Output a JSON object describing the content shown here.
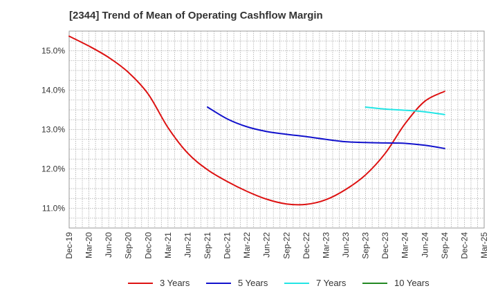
{
  "chart_data": {
    "type": "line",
    "title": "[2344]  Trend of Mean of Operating Cashflow Margin",
    "xlabel": "",
    "ylabel": "",
    "ylim": [
      10.5,
      15.5
    ],
    "yticks": [
      11.0,
      12.0,
      13.0,
      14.0,
      15.0
    ],
    "ytick_labels": [
      "11.0%",
      "12.0%",
      "13.0%",
      "14.0%",
      "15.0%"
    ],
    "x_tick_labels": [
      "Dec-19",
      "Mar-20",
      "Jun-20",
      "Sep-20",
      "Dec-20",
      "Mar-21",
      "Jun-21",
      "Sep-21",
      "Dec-21",
      "Mar-22",
      "Jun-22",
      "Sep-22",
      "Dec-22",
      "Mar-23",
      "Jun-23",
      "Sep-23",
      "Dec-23",
      "Mar-24",
      "Jun-24",
      "Sep-24",
      "Dec-24",
      "Mar-25"
    ],
    "grid": true,
    "legend_position": "bottom",
    "series": [
      {
        "name": "3 Years",
        "color": "#dd1111",
        "x": [
          "Dec-19",
          "Mar-20",
          "Jun-20",
          "Sep-20",
          "Dec-20",
          "Mar-21",
          "Jun-21",
          "Sep-21",
          "Dec-21",
          "Mar-22",
          "Jun-22",
          "Sep-22",
          "Dec-22",
          "Mar-23",
          "Jun-23",
          "Sep-23",
          "Dec-23",
          "Mar-24",
          "Jun-24",
          "Sep-24"
        ],
        "values": [
          15.37,
          15.12,
          14.83,
          14.45,
          13.9,
          13.05,
          12.4,
          11.98,
          11.68,
          11.43,
          11.23,
          11.11,
          11.1,
          11.22,
          11.48,
          11.85,
          12.4,
          13.15,
          13.72,
          13.97
        ]
      },
      {
        "name": "5 Years",
        "color": "#1111cc",
        "x": [
          "Sep-21",
          "Dec-21",
          "Mar-22",
          "Jun-22",
          "Sep-22",
          "Dec-22",
          "Mar-23",
          "Jun-23",
          "Sep-23",
          "Dec-23",
          "Mar-24",
          "Jun-24",
          "Sep-24"
        ],
        "values": [
          13.57,
          13.27,
          13.07,
          12.95,
          12.88,
          12.82,
          12.75,
          12.69,
          12.67,
          12.66,
          12.65,
          12.6,
          12.52
        ]
      },
      {
        "name": "7 Years",
        "color": "#22e5e5",
        "x": [
          "Sep-23",
          "Dec-23",
          "Mar-24",
          "Jun-24",
          "Sep-24"
        ],
        "values": [
          13.57,
          13.52,
          13.49,
          13.45,
          13.38
        ]
      },
      {
        "name": "10 Years",
        "color": "#228822",
        "x": [],
        "values": []
      }
    ]
  }
}
